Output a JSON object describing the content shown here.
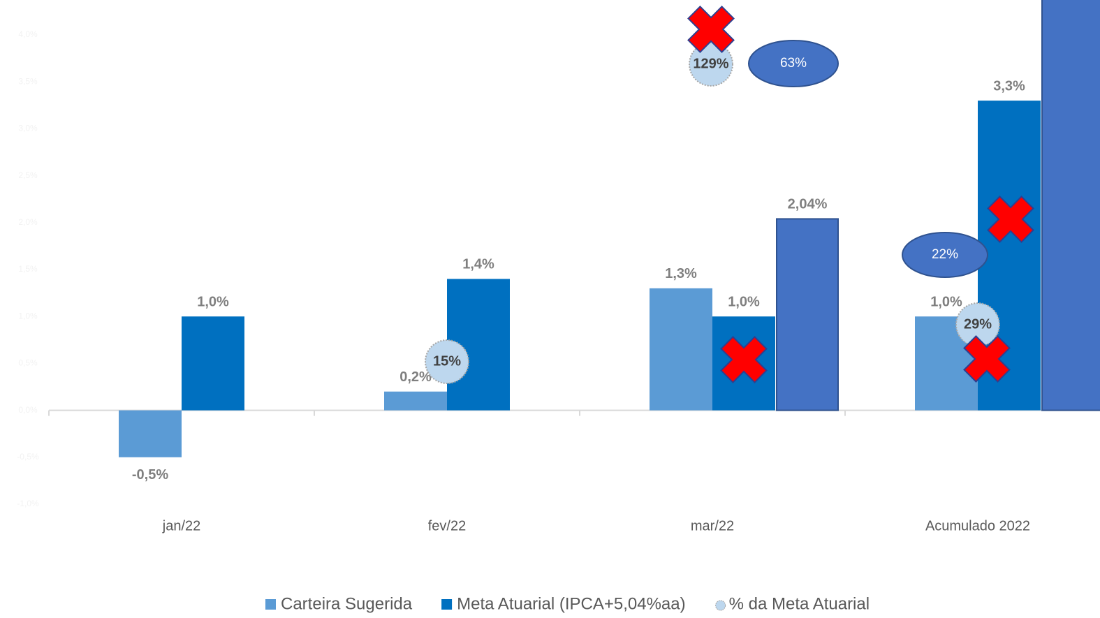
{
  "chart_data": {
    "type": "bar",
    "categories": [
      "jan/22",
      "fev/22",
      "mar/22",
      "Acumulado 2022"
    ],
    "series": [
      {
        "name": "Carteira Sugerida",
        "color": "#5b9bd5",
        "values": [
          -0.5,
          0.2,
          1.3,
          1.0
        ],
        "value_labels": [
          "-0,5%",
          "0,2%",
          "1,3%",
          "1,0%"
        ]
      },
      {
        "name": "Meta Atuarial (IPCA+5,04%aa)",
        "color": "#0070c0",
        "values": [
          1.0,
          1.4,
          1.0,
          3.3
        ],
        "value_labels": [
          "1,0%",
          "1,4%",
          "1,0%",
          "3,3%"
        ]
      },
      {
        "color": "#4472c4",
        "values": [
          null,
          null,
          2.04,
          4.6
        ],
        "value_labels": [
          null,
          null,
          "2,04%",
          null
        ]
      }
    ],
    "percent_series": {
      "name": "% da Meta Atuarial",
      "color": "#bdd7ee",
      "values": [
        null,
        15,
        129,
        29
      ],
      "value_labels": [
        null,
        "15%",
        "129%",
        "29%"
      ]
    },
    "annotations": [
      "63%",
      "22%"
    ],
    "ylim": [
      -1.0,
      4.0
    ],
    "yticks": [
      {
        "value": -1.0,
        "label": "-1,0%"
      },
      {
        "value": -0.5,
        "label": "-0,5%"
      },
      {
        "value": 0,
        "label": "0,0%"
      },
      {
        "value": 0.5,
        "label": "0,5%"
      },
      {
        "value": 1.0,
        "label": "1,0%"
      },
      {
        "value": 1.5,
        "label": "1,5%"
      },
      {
        "value": 2.0,
        "label": "2,0%"
      },
      {
        "value": 2.5,
        "label": "2,5%"
      },
      {
        "value": 3.0,
        "label": "3,0%"
      },
      {
        "value": 3.5,
        "label": "3,5%"
      },
      {
        "value": 4.0,
        "label": "4,0%"
      }
    ]
  }
}
